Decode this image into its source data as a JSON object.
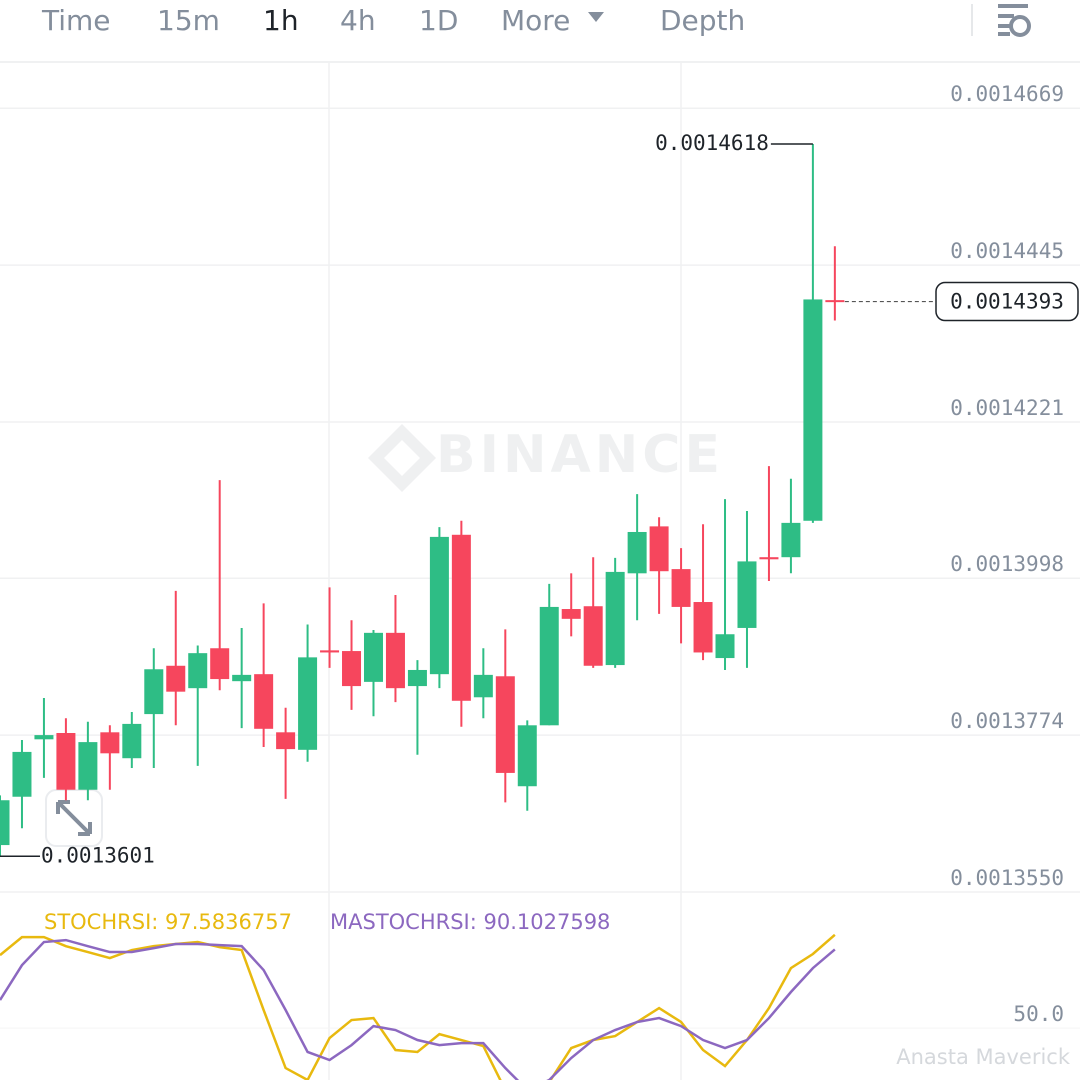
{
  "toolbar": {
    "tabs": [
      "Time",
      "15m",
      "1h",
      "4h",
      "1D",
      "More",
      "Depth"
    ],
    "active": 2
  },
  "watermarks": [
    "BINANCE",
    "Anasta Maverick"
  ],
  "chart_data": [
    {
      "type": "candlestick",
      "up_color": "#2ebd85",
      "down_color": "#f6465d",
      "open": [
        0.0013617,
        0.0013686,
        0.0013768,
        0.0013777,
        0.0013696,
        0.0013778,
        0.0013741,
        0.0013804,
        0.0013873,
        0.0013841,
        0.0013898,
        0.0013851,
        0.0013861,
        0.0013778,
        0.0013753,
        0.0013895,
        0.0013894,
        0.001385,
        0.001392,
        0.0013844,
        0.0013861,
        0.001406,
        0.0013828,
        0.0013858,
        0.0013701,
        0.0013788,
        0.0013954,
        0.0013958,
        0.0013874,
        0.0014005,
        0.0014072,
        0.0014011,
        0.0013964,
        0.0013884,
        0.0013927,
        0.0014028,
        0.0014028,
        0.001408,
        0.0014395
      ],
      "high": [
        0.0013688,
        0.0013767,
        0.0013827,
        0.0013798,
        0.0013793,
        0.0013788,
        0.0013807,
        0.0013898,
        0.001398,
        0.0013902,
        0.0014138,
        0.0013927,
        0.0013962,
        0.0013813,
        0.0013932,
        0.0013985,
        0.0013938,
        0.0013924,
        0.0013974,
        0.0013881,
        0.0014071,
        0.001408,
        0.0013898,
        0.0013925,
        0.0013795,
        0.001399,
        0.0014005,
        0.0014028,
        0.0014027,
        0.0014118,
        0.0014085,
        0.0014041,
        0.0014075,
        0.0014111,
        0.0014094,
        0.0014158,
        0.001414,
        0.0014618,
        0.0014472
      ],
      "low": [
        0.0013601,
        0.0013641,
        0.0013713,
        0.0013681,
        0.0013681,
        0.0013696,
        0.0013727,
        0.0013727,
        0.0013788,
        0.001373,
        0.0013838,
        0.0013784,
        0.0013757,
        0.0013683,
        0.0013736,
        0.001387,
        0.001381,
        0.0013801,
        0.0013821,
        0.0013746,
        0.0013841,
        0.0013786,
        0.0013798,
        0.0013678,
        0.0013666,
        0.0013788,
        0.0013915,
        0.001387,
        0.001387,
        0.0013938,
        0.0013947,
        0.0013905,
        0.0013881,
        0.0013867,
        0.001387,
        0.0013994,
        0.0014005,
        0.0014077,
        0.0014366
      ],
      "close": [
        0.0013681,
        0.001375,
        0.0013774,
        0.0013696,
        0.0013764,
        0.0013748,
        0.001379,
        0.0013868,
        0.0013836,
        0.0013891,
        0.0013854,
        0.001386,
        0.0013783,
        0.0013754,
        0.0013885,
        0.0013892,
        0.0013844,
        0.001392,
        0.0013841,
        0.0013867,
        0.0014057,
        0.0013823,
        0.001386,
        0.001372,
        0.0013788,
        0.0013957,
        0.001394,
        0.0013873,
        0.0014007,
        0.0014064,
        0.0014008,
        0.0013957,
        0.0013892,
        0.0013918,
        0.0014022,
        0.0014025,
        0.0014077,
        0.0014396,
        0.0014393
      ],
      "ylim": [
        0.001355,
        0.0014735
      ],
      "yticks": [
        0.0014669,
        0.0014445,
        0.0014221,
        0.0013998,
        0.0013774,
        {
          "value": 0.001355,
          "label": "0.0013550"
        }
      ]
    },
    {
      "type": "line",
      "series": [
        {
          "name": "STOCHRSI",
          "legend": "STOCHRSI: 97.5836757",
          "color": "#e8b90f",
          "values": [
            87.2,
            96.4,
            96.4,
            91.8,
            88.8,
            85.7,
            89.8,
            91.8,
            92.9,
            93.9,
            91.3,
            89.8,
            59.2,
            29.6,
            23.5,
            44.9,
            54.1,
            55.1,
            38.8,
            37.8,
            46.9,
            43.9,
            40.8,
            18.4,
            13.3,
            22.4,
            39.8,
            43.9,
            45.9,
            53.1,
            60.2,
            53.1,
            38.8,
            30.6,
            43.9,
            60.2,
            80.6,
            87.8,
            97.5836757
          ]
        },
        {
          "name": "MASTOCHRSI",
          "legend": "MASTOCHRSI: 90.1027598",
          "color": "#8c68c0",
          "values": [
            64.3,
            82.1,
            93.9,
            94.9,
            91.8,
            88.8,
            88.8,
            90.8,
            92.9,
            92.9,
            92.3,
            91.8,
            79.6,
            59.2,
            37.8,
            33.7,
            41.3,
            51.0,
            49.0,
            43.9,
            41.3,
            42.3,
            42.3,
            29.6,
            18.4,
            23.5,
            34.7,
            43.9,
            49.0,
            53.1,
            55.1,
            51.0,
            43.9,
            39.8,
            43.9,
            55.1,
            68.4,
            80.6,
            90.1027598
          ]
        }
      ],
      "ylim": [
        23.5,
        112.8
      ],
      "yticks": [
        {
          "value": 50,
          "label": "50.0"
        }
      ]
    }
  ]
}
